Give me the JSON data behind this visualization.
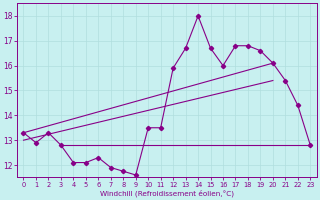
{
  "xlabel": "Windchill (Refroidissement éolien,°C)",
  "background_color": "#c8f0f0",
  "grid_color": "#b0dede",
  "line_color": "#880088",
  "x_values": [
    0,
    1,
    2,
    3,
    4,
    5,
    6,
    7,
    8,
    9,
    10,
    11,
    12,
    13,
    14,
    15,
    16,
    17,
    18,
    19,
    20,
    21,
    22,
    23
  ],
  "y_main": [
    13.3,
    12.9,
    13.3,
    12.8,
    12.1,
    12.1,
    12.3,
    11.9,
    11.75,
    11.6,
    13.5,
    13.5,
    15.9,
    16.7,
    18.0,
    16.7,
    16.0,
    16.8,
    16.8,
    16.6,
    16.1,
    15.4,
    14.4,
    12.8
  ],
  "line1": [
    [
      3,
      12.8
    ],
    [
      23,
      12.8
    ]
  ],
  "line2": [
    [
      0,
      13.3
    ],
    [
      20,
      16.1
    ]
  ],
  "line3": [
    [
      0,
      13.0
    ],
    [
      20,
      15.4
    ]
  ],
  "ylim": [
    11.5,
    18.5
  ],
  "xlim": [
    -0.5,
    23.5
  ],
  "yticks": [
    12,
    13,
    14,
    15,
    16,
    17,
    18
  ],
  "xticks": [
    0,
    1,
    2,
    3,
    4,
    5,
    6,
    7,
    8,
    9,
    10,
    11,
    12,
    13,
    14,
    15,
    16,
    17,
    18,
    19,
    20,
    21,
    22,
    23
  ]
}
